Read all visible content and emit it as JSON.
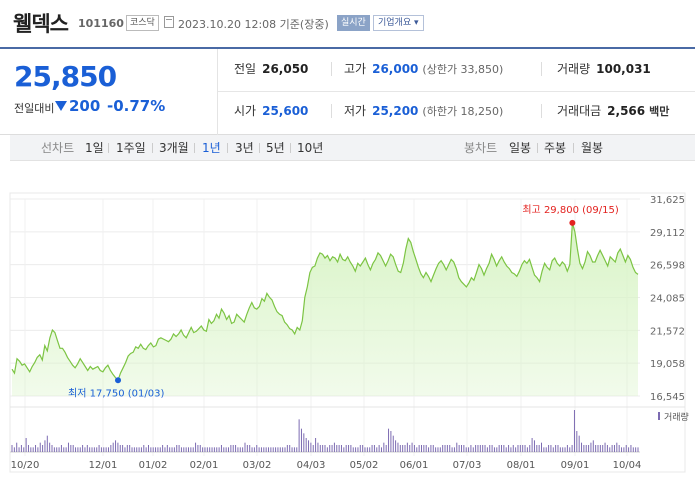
{
  "header": {
    "name": "웰덱스",
    "code": "101160",
    "market": "코스닥",
    "date": "2023.10.20 12:08 기준(장중)",
    "realtime": "실시간",
    "company_info": "기업개요 ▾"
  },
  "price": {
    "current": "25,850",
    "change_label": "전일대비",
    "change": "200",
    "rate": "-0.77%"
  },
  "stats": {
    "prev_label": "전일",
    "prev": "26,050",
    "high_label": "고가",
    "high": "26,000",
    "upper_limit": "(상한가 33,850)",
    "volume_label": "거래량",
    "volume": "100,031",
    "open_label": "시가",
    "open": "25,600",
    "low_label": "저가",
    "low": "25,200",
    "lower_limit": "(하한가 18,250)",
    "amount_label": "거래대금",
    "amount": "2,566",
    "amount_unit": "백만"
  },
  "tabs": {
    "line_label": "선차트",
    "line": [
      "1일",
      "1주일",
      "3개월",
      "1년",
      "3년",
      "5년",
      "10년"
    ],
    "active": "1년",
    "candle_label": "봉차트",
    "candle": [
      "일봉",
      "주봉",
      "월봉"
    ]
  },
  "colors": {
    "line": "#7cc443",
    "fill": "#d9f4c7",
    "accent": "#1a5fd6",
    "high_marker": "#e3221f",
    "low_marker": "#1a5fd6",
    "volume": "#7c6bb2"
  },
  "chart_data": {
    "type": "area",
    "y_ticks": [
      "31,625",
      "29,112",
      "26,598",
      "24,085",
      "21,572",
      "19,058",
      "16,545"
    ],
    "ylim": [
      16545,
      31625
    ],
    "x_ticks": [
      "10/20",
      "12/01",
      "01/02",
      "02/01",
      "03/02",
      "04/03",
      "05/02",
      "06/01",
      "07/03",
      "08/01",
      "09/01",
      "10/04"
    ],
    "high_label": "최고 29,800 (09/15)",
    "low_label": "최저 17,750 (01/03)",
    "volume_label": "거래량",
    "series": [
      {
        "values": [
          18600,
          18300,
          19400,
          19200,
          18900,
          19000,
          18700,
          18400,
          18800,
          19100,
          19500,
          19700,
          19300,
          20400,
          20000,
          21000,
          21600,
          21400,
          20800,
          20200,
          20200,
          19900,
          19500,
          19200,
          18900,
          18700,
          19000,
          19400,
          19100,
          18800,
          18500,
          18800,
          18600,
          18700,
          18800,
          18500,
          18400,
          18700,
          18900,
          18500,
          18200,
          17950,
          17750,
          18300,
          18700,
          19100,
          19600,
          19800,
          19900,
          20300,
          20200,
          20500,
          20200,
          20100,
          20400,
          20600,
          20300,
          20400,
          20900,
          21000,
          20900,
          20800,
          20700,
          20900,
          21300,
          21100,
          21300,
          21600,
          21200,
          21000,
          21400,
          21800,
          21400,
          21500,
          21700,
          21900,
          21600,
          21500,
          22400,
          22100,
          22300,
          22800,
          22500,
          23200,
          22900,
          22400,
          22700,
          22100,
          22200,
          22800,
          22600,
          22400,
          22200,
          22800,
          23300,
          23700,
          23300,
          23200,
          23400,
          24000,
          23800,
          24400,
          24100,
          23900,
          23400,
          23000,
          22800,
          22700,
          22200,
          22000,
          21700,
          21600,
          21300,
          21800,
          21600,
          22300,
          24100,
          24900,
          26000,
          26400,
          26500,
          27100,
          27500,
          27400,
          27100,
          27300,
          26900,
          27200,
          27100,
          26800,
          27400,
          27000,
          26900,
          27200,
          26800,
          26500,
          26100,
          26700,
          26500,
          26800,
          27100,
          26600,
          26200,
          26700,
          27000,
          27500,
          27300,
          26900,
          26500,
          26900,
          27400,
          27200,
          26600,
          26100,
          26000,
          26700,
          27800,
          28600,
          28300,
          27600,
          27000,
          26400,
          25900,
          25600,
          26000,
          25700,
          25300,
          25800,
          26300,
          26700,
          26900,
          26600,
          26200,
          26600,
          27000,
          26800,
          26300,
          25600,
          25300,
          25100,
          24900,
          25200,
          25600,
          25400,
          26000,
          26600,
          26300,
          25800,
          26300,
          26700,
          27400,
          27000,
          26500,
          26900,
          27200,
          26800,
          26500,
          26300,
          26000,
          25900,
          25700,
          26100,
          26600,
          26900,
          26700,
          27000,
          26400,
          25800,
          25600,
          25300,
          26100,
          26700,
          26400,
          26200,
          26900,
          27100,
          26700,
          26500,
          26800,
          26600,
          26100,
          26600,
          29800,
          29100,
          27800,
          26700,
          26300,
          26800,
          27600,
          27300,
          26800,
          26800,
          27300,
          27700,
          27300,
          26900,
          26500,
          27200,
          27000,
          26800,
          27500,
          27800,
          27300,
          26800,
          27300,
          27000,
          26400,
          26000,
          25850
        ]
      }
    ],
    "volume": [
      3,
      2,
      4,
      2,
      3,
      2,
      6,
      3,
      2,
      2,
      3,
      2,
      4,
      3,
      5,
      7,
      4,
      3,
      2,
      2,
      2,
      3,
      2,
      2,
      4,
      3,
      3,
      2,
      2,
      2,
      3,
      2,
      3,
      2,
      2,
      2,
      2,
      3,
      2,
      2,
      2,
      2,
      3,
      4,
      5,
      4,
      3,
      3,
      2,
      3,
      3,
      2,
      2,
      2,
      2,
      2,
      3,
      2,
      3,
      2,
      2,
      2,
      2,
      2,
      3,
      2,
      3,
      2,
      2,
      2,
      3,
      3,
      2,
      2,
      2,
      2,
      2,
      2,
      4,
      3,
      3,
      2,
      2,
      2,
      2,
      2,
      2,
      2,
      2,
      3,
      2,
      2,
      2,
      3,
      3,
      3,
      2,
      2,
      2,
      4,
      3,
      3,
      2,
      2,
      3,
      2,
      2,
      2,
      2,
      2,
      2,
      2,
      2,
      2,
      2,
      2,
      2,
      3,
      3,
      2,
      2,
      2,
      14,
      10,
      8,
      6,
      5,
      4,
      3,
      6,
      4,
      3,
      3,
      3,
      2,
      3,
      3,
      4,
      3,
      3,
      3,
      2,
      3,
      3,
      3,
      2,
      2,
      2,
      3,
      3,
      2,
      2,
      2,
      3,
      3,
      2,
      3,
      2,
      4,
      3,
      10,
      9,
      7,
      5,
      4,
      3,
      3,
      3,
      4,
      3,
      4,
      3,
      2,
      3,
      3,
      3,
      3,
      2,
      3,
      3,
      2,
      2,
      2,
      3,
      3,
      3,
      3,
      2,
      2,
      4,
      3,
      3,
      3,
      2,
      2,
      3,
      2,
      3,
      3,
      3,
      3,
      3,
      2,
      3,
      3,
      2,
      2,
      3,
      3,
      3,
      2,
      3,
      2,
      3,
      2,
      3,
      3,
      3,
      3,
      2,
      3,
      6,
      5,
      3,
      3,
      4,
      2,
      2,
      3,
      3,
      2,
      3,
      3,
      2,
      2,
      2,
      3,
      2,
      3,
      18,
      9,
      7,
      4,
      3,
      3,
      3,
      4,
      5,
      3,
      3,
      3,
      3,
      4,
      3,
      2,
      3,
      3,
      4,
      3,
      2,
      2,
      3,
      2,
      3,
      2,
      2,
      2
    ]
  }
}
